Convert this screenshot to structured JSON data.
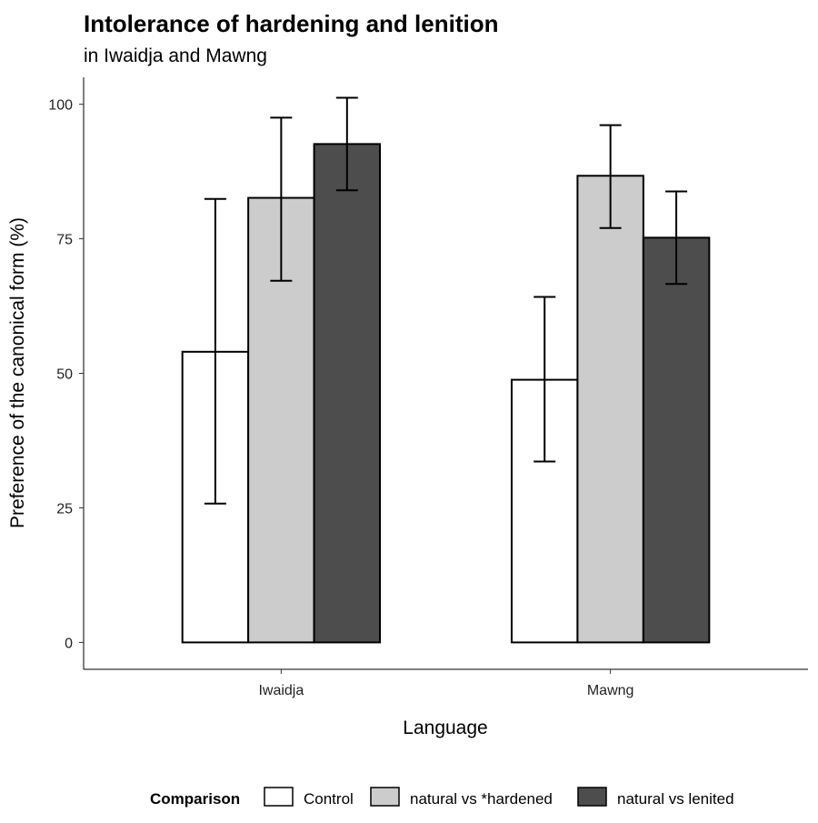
{
  "chart_data": {
    "type": "bar",
    "title": "Intolerance of hardening and lenition",
    "subtitle": "in Iwaidja and Mawng",
    "xlabel": "Language",
    "ylabel": "Preference of the canonical form (%)",
    "categories": [
      "Iwaidja",
      "Mawng"
    ],
    "ylim": [
      -5,
      105
    ],
    "yticks": [
      0,
      25,
      50,
      75,
      100
    ],
    "grid": false,
    "legend": {
      "title": "Comparison",
      "placement": "bottom"
    },
    "series": [
      {
        "name": "Control",
        "color": "#FFFFFF",
        "values": [
          54.0,
          48.8
        ],
        "error_low": [
          25.8,
          33.6
        ],
        "error_high": [
          82.4,
          64.2
        ]
      },
      {
        "name": "natural vs *hardened",
        "color": "#CCCCCC",
        "values": [
          82.6,
          86.7
        ],
        "error_low": [
          67.2,
          77.0
        ],
        "error_high": [
          97.5,
          96.1
        ]
      },
      {
        "name": "natural vs lenited",
        "color": "#4D4D4D",
        "values": [
          92.6,
          75.2
        ],
        "error_low": [
          84.0,
          66.6
        ],
        "error_high": [
          101.2,
          83.8
        ]
      }
    ]
  }
}
